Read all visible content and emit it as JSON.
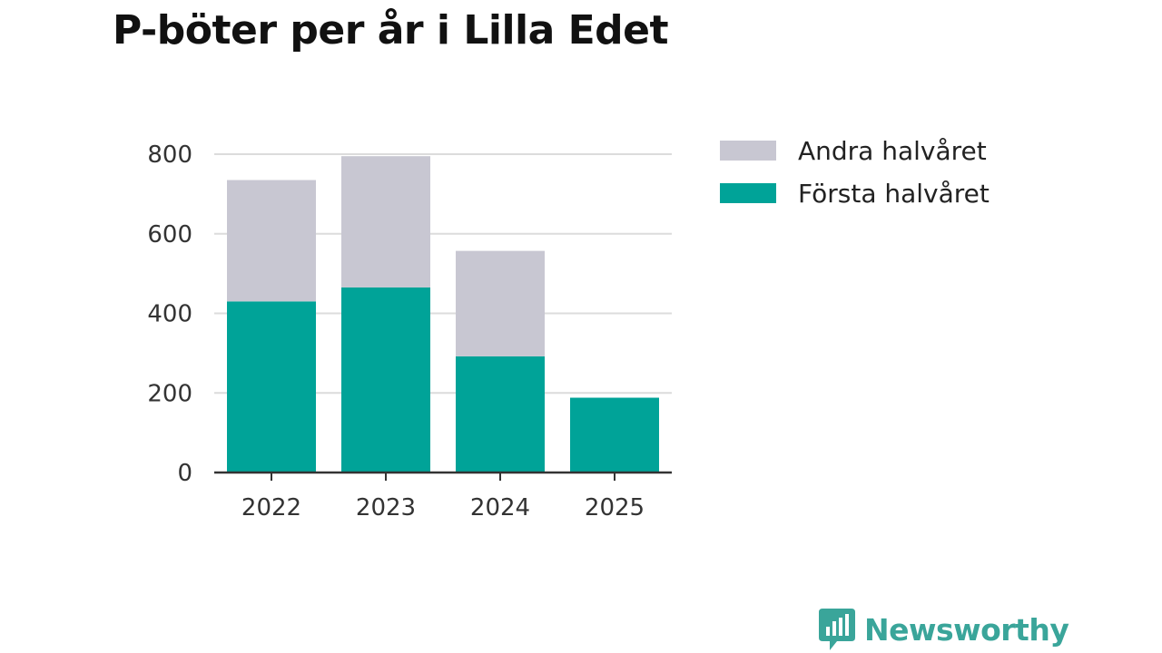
{
  "chart_data": {
    "type": "bar",
    "stacked": true,
    "title": "P-böter per år i Lilla Edet",
    "categories": [
      "2022",
      "2023",
      "2024",
      "2025"
    ],
    "series": [
      {
        "name": "Första halvåret",
        "values": [
          430,
          465,
          292,
          188
        ],
        "color": "#00a398"
      },
      {
        "name": "Andra halvåret",
        "values": [
          305,
          330,
          265,
          0
        ],
        "color": "#c8c7d2"
      }
    ],
    "ylim": [
      0,
      800
    ],
    "yticks": [
      0,
      200,
      400,
      600,
      800
    ],
    "grid": true,
    "legend_position": "right"
  },
  "brand": {
    "name": "Newsworthy",
    "icon": "bar-chart-speech-bubble-icon"
  }
}
